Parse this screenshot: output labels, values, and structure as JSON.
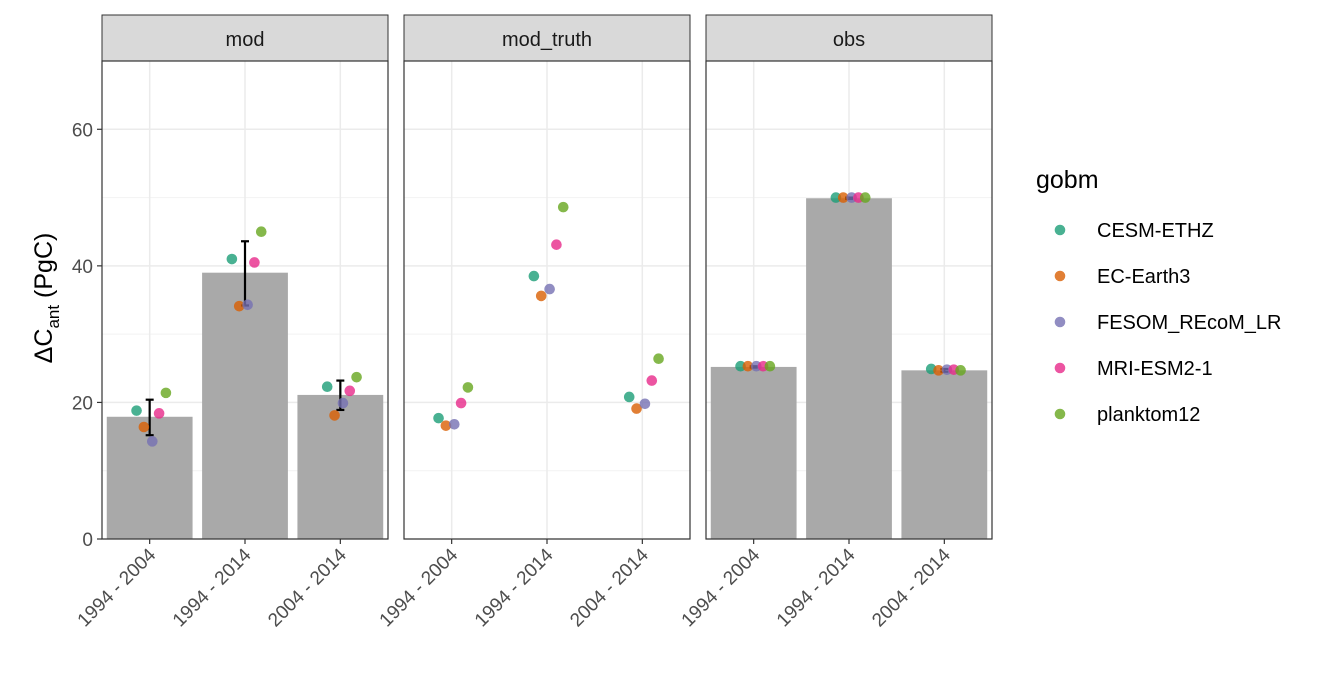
{
  "chart_data": {
    "type": "bar",
    "y_label_main": "ΔC",
    "y_label_sub": "ant",
    "y_label_unit": " (PgC)",
    "ylim": [
      0,
      70
    ],
    "yticks": [
      0,
      20,
      40,
      60
    ],
    "categories": [
      "1994 - 2004",
      "1994 - 2014",
      "2004 - 2014"
    ],
    "legend": {
      "title": "gobm",
      "position": "right",
      "items": [
        {
          "name": "CESM-ETHZ",
          "color": "#1B9E77"
        },
        {
          "name": "EC-Earth3",
          "color": "#D95F02"
        },
        {
          "name": "FESOM_REcoM_LR",
          "color": "#7570B3"
        },
        {
          "name": "MRI-ESM2-1",
          "color": "#E7298A"
        },
        {
          "name": "planktom12",
          "color": "#66A61E"
        }
      ]
    },
    "bar_color": "#A9A9A9",
    "panels": [
      {
        "title": "mod",
        "bars": [
          17.9,
          39.0,
          21.1
        ],
        "errors": [
          [
            15.2,
            20.4
          ],
          [
            34.2,
            43.6
          ],
          [
            18.9,
            23.2
          ]
        ],
        "points": [
          {
            "category": "1994 - 2004",
            "model": "CESM-ETHZ",
            "value": 18.8
          },
          {
            "category": "1994 - 2004",
            "model": "EC-Earth3",
            "value": 16.4
          },
          {
            "category": "1994 - 2004",
            "model": "FESOM_REcoM_LR",
            "value": 14.3
          },
          {
            "category": "1994 - 2004",
            "model": "MRI-ESM2-1",
            "value": 18.4
          },
          {
            "category": "1994 - 2004",
            "model": "planktom12",
            "value": 21.4
          },
          {
            "category": "1994 - 2014",
            "model": "CESM-ETHZ",
            "value": 41.0
          },
          {
            "category": "1994 - 2014",
            "model": "EC-Earth3",
            "value": 34.1
          },
          {
            "category": "1994 - 2014",
            "model": "FESOM_REcoM_LR",
            "value": 34.3
          },
          {
            "category": "1994 - 2014",
            "model": "MRI-ESM2-1",
            "value": 40.5
          },
          {
            "category": "1994 - 2014",
            "model": "planktom12",
            "value": 45.0
          },
          {
            "category": "2004 - 2014",
            "model": "CESM-ETHZ",
            "value": 22.3
          },
          {
            "category": "2004 - 2014",
            "model": "EC-Earth3",
            "value": 18.1
          },
          {
            "category": "2004 - 2014",
            "model": "FESOM_REcoM_LR",
            "value": 19.9
          },
          {
            "category": "2004 - 2014",
            "model": "MRI-ESM2-1",
            "value": 21.7
          },
          {
            "category": "2004 - 2014",
            "model": "planktom12",
            "value": 23.7
          }
        ]
      },
      {
        "title": "mod_truth",
        "bars": [],
        "errors": [],
        "points": [
          {
            "category": "1994 - 2004",
            "model": "CESM-ETHZ",
            "value": 17.7
          },
          {
            "category": "1994 - 2004",
            "model": "EC-Earth3",
            "value": 16.6
          },
          {
            "category": "1994 - 2004",
            "model": "FESOM_REcoM_LR",
            "value": 16.8
          },
          {
            "category": "1994 - 2004",
            "model": "MRI-ESM2-1",
            "value": 19.9
          },
          {
            "category": "1994 - 2004",
            "model": "planktom12",
            "value": 22.2
          },
          {
            "category": "1994 - 2014",
            "model": "CESM-ETHZ",
            "value": 38.5
          },
          {
            "category": "1994 - 2014",
            "model": "EC-Earth3",
            "value": 35.6
          },
          {
            "category": "1994 - 2014",
            "model": "FESOM_REcoM_LR",
            "value": 36.6
          },
          {
            "category": "1994 - 2014",
            "model": "MRI-ESM2-1",
            "value": 43.1
          },
          {
            "category": "1994 - 2014",
            "model": "planktom12",
            "value": 48.6
          },
          {
            "category": "2004 - 2014",
            "model": "CESM-ETHZ",
            "value": 20.8
          },
          {
            "category": "2004 - 2014",
            "model": "EC-Earth3",
            "value": 19.1
          },
          {
            "category": "2004 - 2014",
            "model": "FESOM_REcoM_LR",
            "value": 19.8
          },
          {
            "category": "2004 - 2014",
            "model": "MRI-ESM2-1",
            "value": 23.2
          },
          {
            "category": "2004 - 2014",
            "model": "planktom12",
            "value": 26.4
          }
        ]
      },
      {
        "title": "obs",
        "bars": [
          25.2,
          49.9,
          24.7
        ],
        "errors": [
          [
            25.1,
            25.3
          ],
          [
            49.8,
            50.0
          ],
          [
            24.5,
            24.9
          ]
        ],
        "points": [
          {
            "category": "1994 - 2004",
            "model": "CESM-ETHZ",
            "value": 25.3
          },
          {
            "category": "1994 - 2004",
            "model": "EC-Earth3",
            "value": 25.3
          },
          {
            "category": "1994 - 2004",
            "model": "FESOM_REcoM_LR",
            "value": 25.3
          },
          {
            "category": "1994 - 2004",
            "model": "MRI-ESM2-1",
            "value": 25.3
          },
          {
            "category": "1994 - 2004",
            "model": "planktom12",
            "value": 25.3
          },
          {
            "category": "1994 - 2014",
            "model": "CESM-ETHZ",
            "value": 50.0
          },
          {
            "category": "1994 - 2014",
            "model": "EC-Earth3",
            "value": 50.0
          },
          {
            "category": "1994 - 2014",
            "model": "FESOM_REcoM_LR",
            "value": 50.0
          },
          {
            "category": "1994 - 2014",
            "model": "MRI-ESM2-1",
            "value": 50.0
          },
          {
            "category": "1994 - 2014",
            "model": "planktom12",
            "value": 50.0
          },
          {
            "category": "2004 - 2014",
            "model": "CESM-ETHZ",
            "value": 24.9
          },
          {
            "category": "2004 - 2014",
            "model": "EC-Earth3",
            "value": 24.7
          },
          {
            "category": "2004 - 2014",
            "model": "FESOM_REcoM_LR",
            "value": 24.8
          },
          {
            "category": "2004 - 2014",
            "model": "MRI-ESM2-1",
            "value": 24.8
          },
          {
            "category": "2004 - 2014",
            "model": "planktom12",
            "value": 24.7
          }
        ]
      }
    ]
  }
}
